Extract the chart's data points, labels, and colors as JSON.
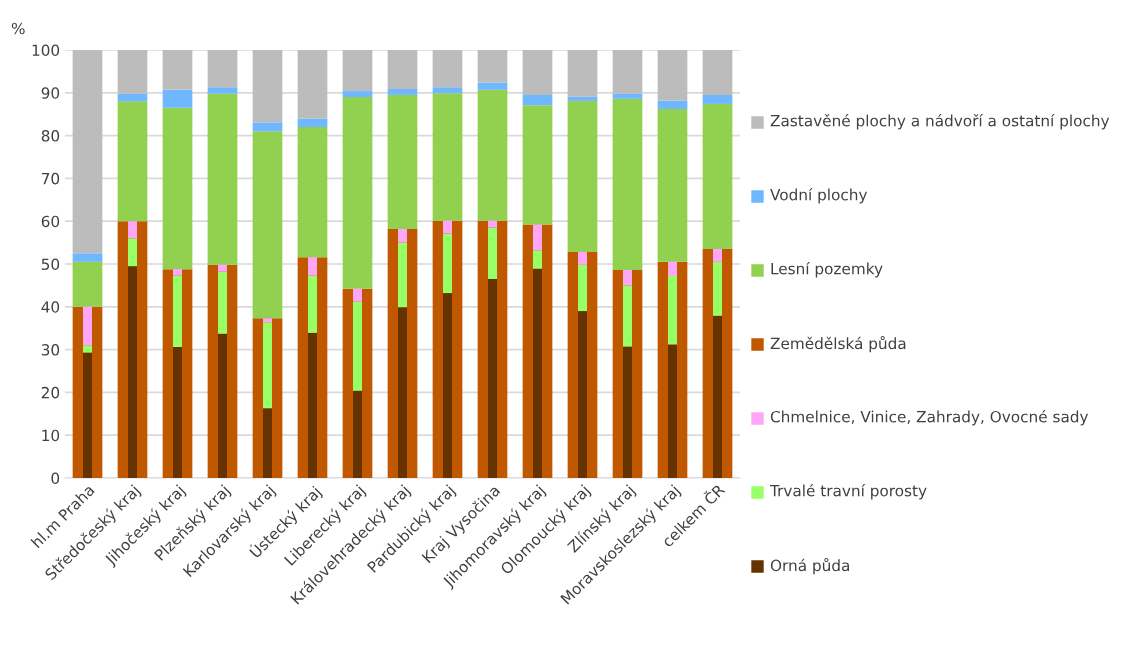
{
  "chart_data": {
    "type": "bar",
    "ylabel": "%",
    "categories": [
      "hl.m Praha",
      "Středočeský kraj",
      "Jihočeský kraj",
      "Plzeňský kraj",
      "Karlovarský kraj",
      "Ústecký kraj",
      "Liberecký kraj",
      "Královehradecký kraj",
      "Pardubický kraj",
      "Kraj Vysočina",
      "Jihomoravský kraj",
      "Olomoucký kraj",
      "Zlínský kraj",
      "Moravskoslezský kraj",
      "celkem ČR"
    ],
    "series": [
      {
        "name": "Orná půda",
        "color": "#663300",
        "base": [
          0,
          0,
          0,
          0,
          0,
          0,
          0,
          0,
          0,
          0,
          0,
          0,
          0,
          0,
          0
        ],
        "values": [
          29.3,
          49.5,
          30.6,
          33.7,
          16.3,
          33.9,
          20.4,
          39.9,
          43.2,
          46.5,
          48.9,
          39.0,
          30.7,
          31.2,
          37.9
        ]
      },
      {
        "name": "Trvalé travní porosty",
        "color": "#99ff66",
        "base": [
          29.3,
          49.5,
          30.6,
          33.7,
          16.3,
          33.9,
          20.4,
          39.9,
          43.2,
          46.5,
          48.9,
          39.0,
          30.7,
          31.2,
          37.9
        ],
        "values": [
          1.7,
          6.5,
          16.7,
          14.5,
          20.1,
          13.4,
          20.8,
          15.1,
          13.9,
          12.0,
          4.3,
          10.8,
          14.3,
          16.0,
          12.6
        ]
      },
      {
        "name": "Chmelnice, Vinice, Zahrady, Ovocné sady",
        "color": "#ffa6f6",
        "base": [
          31.0,
          56.0,
          47.3,
          48.2,
          36.4,
          47.3,
          41.2,
          55.0,
          57.1,
          58.5,
          53.2,
          49.8,
          45.0,
          47.2,
          50.5
        ],
        "values": [
          9.0,
          4.0,
          1.5,
          1.6,
          0.9,
          4.3,
          3.0,
          3.2,
          3.0,
          1.6,
          6.0,
          3.0,
          3.6,
          3.3,
          3.0
        ]
      },
      {
        "name": "Zemědělská půda",
        "color": "#c05800",
        "base": [
          0,
          0,
          0,
          0,
          0,
          0,
          0,
          0,
          0,
          0,
          0,
          0,
          0,
          0,
          0
        ],
        "values": [
          40,
          60,
          48.8,
          49.8,
          37.3,
          51.6,
          44.2,
          58.2,
          60.1,
          60.1,
          59.2,
          52.8,
          48.6,
          50.5,
          53.5
        ]
      },
      {
        "name": "Lesní pozemky",
        "color": "#92d050",
        "base": [
          40,
          60,
          48.8,
          49.8,
          37.3,
          51.6,
          44.2,
          58.2,
          60.1,
          60.1,
          59.2,
          52.8,
          48.6,
          50.5,
          53.5
        ],
        "values": [
          10.5,
          28.0,
          37.7,
          40.0,
          43.7,
          30.4,
          44.8,
          31.3,
          29.8,
          30.6,
          27.9,
          35.3,
          40.0,
          35.7,
          33.9
        ]
      },
      {
        "name": "Vodní plochy",
        "color": "#6fb7ff",
        "base": [
          50.5,
          88.0,
          86.5,
          89.8,
          81.0,
          82.0,
          89.0,
          89.5,
          89.9,
          90.7,
          87.1,
          88.1,
          88.6,
          86.2,
          87.4
        ],
        "values": [
          2.0,
          1.8,
          4.2,
          1.5,
          2.1,
          2.0,
          1.4,
          1.4,
          1.4,
          1.7,
          2.4,
          1.0,
          1.2,
          2.0,
          2.1
        ]
      },
      {
        "name": "Zastavěné plochy a nádvoří a ostatní plochy",
        "color": "#bcbcbc",
        "base": [
          52.5,
          89.8,
          90.7,
          91.3,
          83.1,
          84.0,
          90.4,
          90.9,
          91.3,
          92.4,
          89.5,
          89.1,
          89.8,
          88.2,
          89.5
        ],
        "values": [
          47.5,
          10.2,
          9.3,
          8.7,
          16.9,
          16.0,
          9.6,
          9.1,
          8.7,
          7.6,
          10.5,
          10.9,
          10.2,
          11.8,
          10.5
        ]
      }
    ],
    "ylim": [
      0,
      100
    ],
    "yticks": [
      0,
      10,
      20,
      30,
      40,
      50,
      60,
      70,
      80,
      90,
      100
    ],
    "grid": "y",
    "legend": "right"
  }
}
